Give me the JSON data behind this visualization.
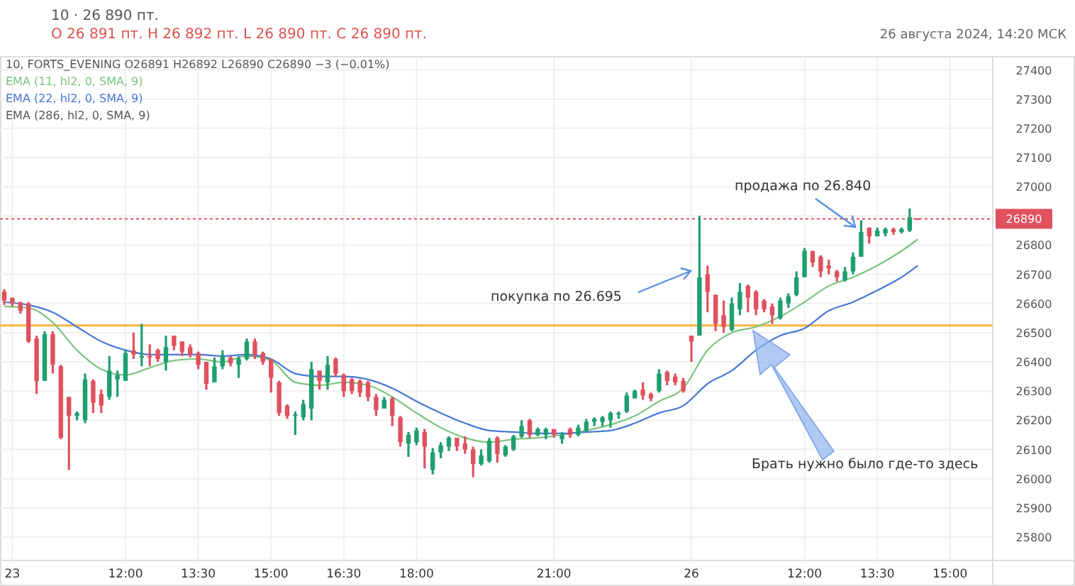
{
  "chart_data": {
    "type": "candlestick",
    "title": "10 · 26 890 пт.",
    "subtitle": "O 26 891 пт.  H 26 892 пт.  L 26 890 пт.  C 26 890 пт.",
    "categories": [
      null,
      "23",
      null,
      null,
      null,
      null,
      null,
      null,
      null,
      null,
      null,
      null,
      null,
      null,
      null,
      "12:00",
      null,
      null,
      null,
      null,
      null,
      null,
      null,
      null,
      "13:30",
      null,
      null,
      null,
      null,
      null,
      null,
      null,
      null,
      "15:00",
      null,
      null,
      null,
      null,
      null,
      null,
      null,
      null,
      "16:30",
      null,
      null,
      null,
      null,
      null,
      null,
      null,
      null,
      "18:00",
      null,
      null,
      null,
      null,
      null,
      null,
      null,
      null,
      null,
      null,
      null,
      null,
      null,
      null,
      null,
      null,
      "21:00",
      null,
      null,
      null,
      null,
      null,
      null,
      null,
      null,
      null,
      null,
      null,
      null,
      null,
      null,
      null,
      null,
      "26",
      null,
      null,
      null,
      null,
      null,
      null,
      null,
      null,
      null,
      null,
      null,
      null,
      null,
      "12:00",
      null,
      null,
      null,
      null,
      null,
      null,
      null,
      null,
      "13:30",
      null,
      null,
      null,
      null,
      null,
      null,
      null,
      null,
      "15:00",
      null,
      null,
      null,
      null,
      null
    ],
    "ohlc": [
      [
        26640,
        26649,
        26595,
        26610
      ],
      [
        26620,
        26620,
        26590,
        26600
      ],
      [
        26605,
        26605,
        26565,
        26575
      ],
      [
        26600,
        26605,
        26465,
        26470
      ],
      [
        26480,
        26490,
        26290,
        26335
      ],
      [
        26335,
        26505,
        26335,
        26495
      ],
      [
        26495,
        26505,
        26360,
        26390
      ],
      [
        26385,
        26390,
        26135,
        26140
      ],
      [
        26280,
        26280,
        26030,
        26215
      ],
      [
        26215,
        26230,
        26200,
        26225
      ],
      [
        26200,
        26360,
        26190,
        26340
      ],
      [
        26335,
        26340,
        26225,
        26260
      ],
      [
        26290,
        26305,
        26225,
        26250
      ],
      [
        26280,
        26420,
        26270,
        26370
      ],
      [
        26340,
        26370,
        26280,
        26355
      ],
      [
        26335,
        26440,
        26335,
        26430
      ],
      [
        26440,
        26500,
        26410,
        26425
      ],
      [
        26415,
        26530,
        26385,
        26420
      ],
      [
        26420,
        26460,
        26385,
        26415
      ],
      [
        26440,
        26445,
        26400,
        26410
      ],
      [
        26400,
        26490,
        26370,
        26450
      ],
      [
        26490,
        26490,
        26440,
        26455
      ],
      [
        26470,
        26470,
        26420,
        26435
      ],
      [
        26450,
        26460,
        26415,
        26425
      ],
      [
        26430,
        26435,
        26375,
        26390
      ],
      [
        26400,
        26400,
        26305,
        26325
      ],
      [
        26330,
        26415,
        26330,
        26385
      ],
      [
        26385,
        26440,
        26375,
        26420
      ],
      [
        26415,
        26420,
        26385,
        26395
      ],
      [
        26390,
        26420,
        26345,
        26410
      ],
      [
        26410,
        26480,
        26405,
        26470
      ],
      [
        26470,
        26480,
        26410,
        26425
      ],
      [
        26430,
        26435,
        26390,
        26400
      ],
      [
        26410,
        26410,
        26295,
        26345
      ],
      [
        26330,
        26335,
        26215,
        26225
      ],
      [
        26250,
        26255,
        26205,
        26215
      ],
      [
        26215,
        26230,
        26150,
        26220
      ],
      [
        26210,
        26270,
        26200,
        26255
      ],
      [
        26240,
        26400,
        26200,
        26375
      ],
      [
        26370,
        26370,
        26305,
        26335
      ],
      [
        26330,
        26420,
        26305,
        26390
      ],
      [
        26410,
        26415,
        26350,
        26360
      ],
      [
        26355,
        26360,
        26280,
        26300
      ],
      [
        26340,
        26345,
        26290,
        26300
      ],
      [
        26335,
        26340,
        26280,
        26295
      ],
      [
        26330,
        26335,
        26265,
        26280
      ],
      [
        26280,
        26290,
        26215,
        26235
      ],
      [
        26240,
        26280,
        26240,
        26270
      ],
      [
        26275,
        26280,
        26180,
        26215
      ],
      [
        26210,
        26215,
        26110,
        26125
      ],
      [
        26120,
        26160,
        26075,
        26150
      ],
      [
        26125,
        26175,
        26115,
        26165
      ],
      [
        26160,
        26170,
        26035,
        26110
      ],
      [
        26030,
        26105,
        26015,
        26090
      ],
      [
        26090,
        26125,
        26070,
        26115
      ],
      [
        26110,
        26145,
        26095,
        26140
      ],
      [
        26140,
        26140,
        26095,
        26110
      ],
      [
        26120,
        26145,
        26085,
        26100
      ],
      [
        26100,
        26110,
        26005,
        26050
      ],
      [
        26050,
        26100,
        26045,
        26080
      ],
      [
        26060,
        26140,
        26055,
        26130
      ],
      [
        26140,
        26145,
        26055,
        26085
      ],
      [
        26080,
        26115,
        26075,
        26110
      ],
      [
        26100,
        26150,
        26095,
        26145
      ],
      [
        26145,
        26200,
        26140,
        26180
      ],
      [
        26200,
        26205,
        26140,
        26150
      ],
      [
        26150,
        26175,
        26145,
        26170
      ],
      [
        26150,
        26175,
        26135,
        26170
      ],
      [
        26170,
        26170,
        26140,
        26150
      ],
      [
        26135,
        26160,
        26120,
        26150
      ],
      [
        26170,
        26175,
        26140,
        26150
      ],
      [
        26150,
        26185,
        26145,
        26175
      ],
      [
        26165,
        26205,
        26160,
        26195
      ],
      [
        26195,
        26210,
        26180,
        26205
      ],
      [
        26195,
        26215,
        26180,
        26210
      ],
      [
        26200,
        26230,
        26175,
        26225
      ],
      [
        26220,
        26230,
        26205,
        26225
      ],
      [
        26230,
        26295,
        26225,
        26285
      ],
      [
        26275,
        26305,
        26275,
        26300
      ],
      [
        26305,
        26330,
        26270,
        26285
      ],
      [
        26290,
        26295,
        26265,
        26275
      ],
      [
        26300,
        26375,
        26295,
        26360
      ],
      [
        26365,
        26370,
        26320,
        26335
      ],
      [
        26350,
        26360,
        26320,
        26330
      ],
      [
        26335,
        26345,
        26295,
        26300
      ],
      [
        26490,
        26490,
        26400,
        26470
      ],
      [
        26490,
        26900,
        26490,
        26690
      ],
      [
        26700,
        26730,
        26570,
        26640
      ],
      [
        26630,
        26630,
        26505,
        26530
      ],
      [
        26560,
        26610,
        26500,
        26520
      ],
      [
        26510,
        26620,
        26505,
        26600
      ],
      [
        26580,
        26670,
        26560,
        26640
      ],
      [
        26660,
        26665,
        26570,
        26620
      ],
      [
        26640,
        26645,
        26560,
        26580
      ],
      [
        26610,
        26615,
        26570,
        26580
      ],
      [
        26590,
        26600,
        26530,
        26560
      ],
      [
        26550,
        26620,
        26545,
        26610
      ],
      [
        26600,
        26635,
        26585,
        26625
      ],
      [
        26630,
        26710,
        26625,
        26690
      ],
      [
        26690,
        26790,
        26690,
        26780
      ],
      [
        26780,
        26780,
        26725,
        26740
      ],
      [
        26760,
        26765,
        26690,
        26710
      ],
      [
        26730,
        26750,
        26700,
        26720
      ],
      [
        26710,
        26715,
        26675,
        26690
      ],
      [
        26680,
        26725,
        26675,
        26710
      ],
      [
        26710,
        26775,
        26700,
        26760
      ],
      [
        26760,
        26885,
        26760,
        26845
      ],
      [
        26860,
        26860,
        26805,
        26830
      ],
      [
        26830,
        26860,
        26830,
        26850
      ],
      [
        26840,
        26860,
        26830,
        26855
      ],
      [
        26855,
        26860,
        26835,
        26845
      ],
      [
        26845,
        26860,
        26840,
        26855
      ],
      [
        26850,
        26925,
        26845,
        26895
      ],
      [
        26891,
        26892,
        26890,
        26890
      ],
      null,
      null,
      null,
      null,
      null,
      null,
      null,
      null,
      null
    ],
    "colors": [
      "#e0515e",
      "#e0515e",
      "#e0515e",
      "#e0515e",
      "#e0515e",
      "#1f9e6e",
      "#e0515e",
      "#e0515e",
      "#e0515e",
      "#1f9e6e",
      "#1f9e6e",
      "#e0515e",
      "#e0515e",
      "#1f9e6e",
      "#1f9e6e",
      "#1f9e6e",
      "#e0515e",
      "#1f9e6e",
      "#e0515e",
      "#e0515e",
      "#1f9e6e",
      "#e0515e",
      "#e0515e",
      "#e0515e",
      "#e0515e",
      "#e0515e",
      "#1f9e6e",
      "#1f9e6e",
      "#e0515e",
      "#1f9e6e",
      "#1f9e6e",
      "#e0515e",
      "#e0515e",
      "#e0515e",
      "#e0515e",
      "#e0515e",
      "#1f9e6e",
      "#1f9e6e",
      "#1f9e6e",
      "#e0515e",
      "#1f9e6e",
      "#e0515e",
      "#e0515e",
      "#e0515e",
      "#e0515e",
      "#e0515e",
      "#e0515e",
      "#1f9e6e",
      "#e0515e",
      "#e0515e",
      "#1f9e6e",
      "#1f9e6e",
      "#e0515e",
      "#1f9e6e",
      "#1f9e6e",
      "#1f9e6e",
      "#e0515e",
      "#e0515e",
      "#e0515e",
      "#1f9e6e",
      "#1f9e6e",
      "#e0515e",
      "#1f9e6e",
      "#1f9e6e",
      "#1f9e6e",
      "#e0515e",
      "#1f9e6e",
      "#1f9e6e",
      "#e0515e",
      "#1f9e6e",
      "#e0515e",
      "#1f9e6e",
      "#1f9e6e",
      "#1f9e6e",
      "#1f9e6e",
      "#1f9e6e",
      "#1f9e6e",
      "#1f9e6e",
      "#1f9e6e",
      "#e0515e",
      "#e0515e",
      "#1f9e6e",
      "#e0515e",
      "#e0515e",
      "#e0515e",
      "#e0515e",
      "#1f9e6e",
      "#e0515e",
      "#e0515e",
      "#e0515e",
      "#1f9e6e",
      "#1f9e6e",
      "#e0515e",
      "#e0515e",
      "#e0515e",
      "#e0515e",
      "#1f9e6e",
      "#1f9e6e",
      "#1f9e6e",
      "#1f9e6e",
      "#e0515e",
      "#e0515e",
      "#e0515e",
      "#e0515e",
      "#1f9e6e",
      "#1f9e6e",
      "#1f9e6e",
      "#e0515e",
      "#1f9e6e",
      "#1f9e6e",
      "#e0515e",
      "#1f9e6e",
      "#1f9e6e",
      "#e0515e",
      null,
      null,
      null,
      null,
      null,
      null,
      null,
      null,
      null
    ],
    "series": [
      {
        "type": "line",
        "name": "EMA (11, hl2, 0, SMA, 9)",
        "color": "#7cc47f",
        "values": [
          26590,
          null,
          null,
          26585,
          null,
          null,
          26535,
          null,
          null,
          26440,
          null,
          null,
          26375,
          null,
          null,
          26355,
          null,
          null,
          26380,
          null,
          null,
          26405,
          null,
          null,
          26410,
          null,
          null,
          26400,
          null,
          null,
          26420,
          null,
          null,
          26405,
          null,
          null,
          26330,
          null,
          null,
          26320,
          null,
          null,
          26330,
          null,
          null,
          26320,
          null,
          null,
          26280,
          null,
          null,
          26225,
          null,
          null,
          26175,
          null,
          null,
          26140,
          null,
          null,
          26125,
          null,
          null,
          26135,
          null,
          null,
          26140,
          null,
          null,
          26150,
          null,
          null,
          26165,
          null,
          null,
          26185,
          null,
          null,
          26215,
          null,
          null,
          26265,
          null,
          null,
          26310,
          null,
          null,
          26440,
          null,
          null,
          26500,
          null,
          null,
          26520,
          null,
          null,
          26555,
          null,
          null,
          26605,
          null,
          null,
          26660,
          null,
          null,
          26690,
          null,
          null,
          26730,
          null,
          null,
          26780,
          null,
          26820,
          null,
          null,
          null,
          null,
          null,
          null,
          null,
          null,
          null
        ]
      },
      {
        "type": "line",
        "name": "EMA (22, hl2, 0, SMA, 9)",
        "color": "#4a78d6",
        "values": [
          26605,
          null,
          null,
          26595,
          null,
          null,
          26570,
          null,
          null,
          26520,
          null,
          null,
          26470,
          null,
          null,
          26440,
          null,
          null,
          26425,
          null,
          null,
          26425,
          null,
          null,
          26425,
          null,
          null,
          26420,
          null,
          null,
          26425,
          null,
          null,
          26410,
          null,
          null,
          26360,
          null,
          null,
          26350,
          null,
          null,
          26350,
          null,
          null,
          26340,
          null,
          null,
          26310,
          null,
          null,
          26265,
          null,
          null,
          26225,
          null,
          null,
          26190,
          null,
          null,
          26165,
          null,
          null,
          26160,
          null,
          null,
          26155,
          null,
          null,
          26155,
          null,
          null,
          26160,
          null,
          null,
          26165,
          null,
          null,
          26190,
          null,
          null,
          26225,
          null,
          null,
          26250,
          null,
          null,
          26325,
          null,
          null,
          26370,
          null,
          null,
          26440,
          null,
          null,
          26490,
          null,
          null,
          26515,
          null,
          null,
          26575,
          null,
          null,
          26605,
          null,
          null,
          26645,
          null,
          null,
          26690,
          null,
          26730,
          null,
          null,
          null,
          null,
          null,
          null,
          null,
          null,
          null
        ]
      }
    ],
    "ylim": [
      25720,
      27445
    ],
    "yticks": [
      25800,
      25900,
      26000,
      26100,
      26200,
      26300,
      26400,
      26500,
      26600,
      26700,
      26800,
      {
        "value": 26900,
        "label": null
      },
      27000,
      27100,
      27200,
      27300,
      27400
    ],
    "grid": true,
    "legend": "top left",
    "ref_lines": [
      {
        "axis": "y",
        "value": 26525,
        "color": "#f2b544"
      },
      {
        "axis": "y",
        "value": 26890,
        "label": "26890",
        "color": "#e0515e",
        "line_style": "dotted"
      }
    ],
    "annotations": [
      "26 августа 2024, 14:20 МСК",
      "10, FORTS_EVENING  O26891  H26892  L26890  C26890  −3 (−0.01%)",
      "EMA (286, hl2, 0, SMA, 9)",
      "покупка по 26.695",
      "продажа по 26.840",
      "Брать нужно было где-то здесь"
    ]
  }
}
